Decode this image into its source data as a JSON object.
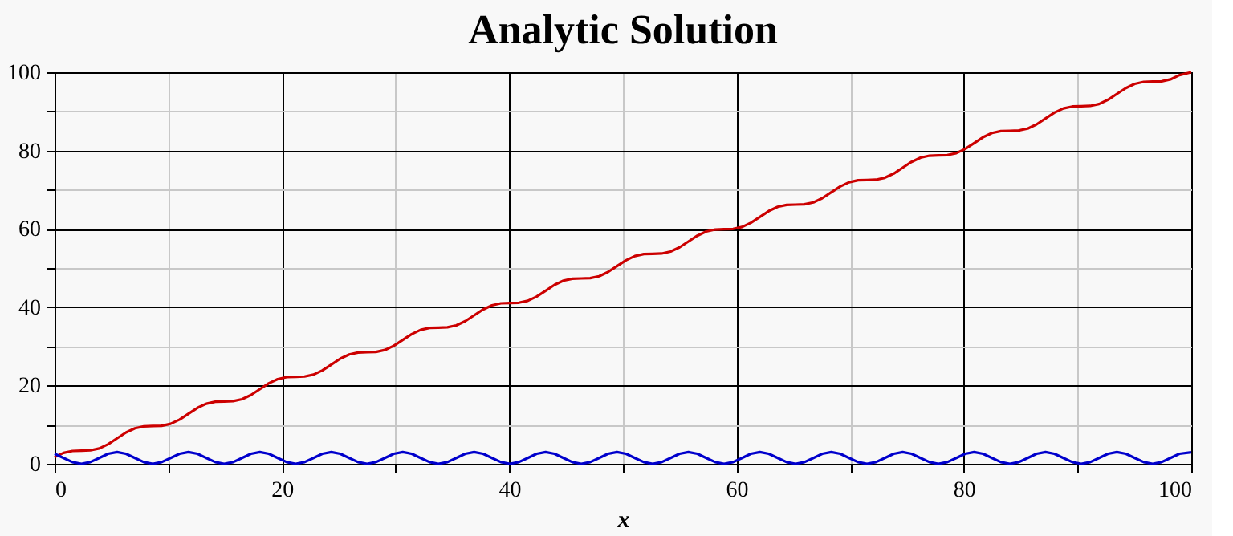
{
  "chart_data": {
    "type": "line",
    "title": "Analytic Solution",
    "xlabel": "x",
    "xlim": [
      0,
      100
    ],
    "ylim": [
      0,
      100
    ],
    "xticks": [
      0,
      {
        "value": 10,
        "label": null
      },
      20,
      {
        "value": 30,
        "label": null
      },
      40,
      {
        "value": 50,
        "label": null
      },
      60,
      {
        "value": 70,
        "label": null
      },
      80,
      {
        "value": 90,
        "label": null
      },
      100
    ],
    "yticks": [
      0,
      {
        "value": 10,
        "label": null
      },
      20,
      {
        "value": 30,
        "label": null
      },
      40,
      {
        "value": 50,
        "label": null
      },
      60,
      {
        "value": 70,
        "label": null
      },
      80,
      {
        "value": 90,
        "label": null
      },
      100
    ],
    "grid": true,
    "legend": false,
    "marker": "none",
    "line_style": "solid",
    "series": [
      {
        "color": "#cc0000",
        "x": [
          0,
          0.79,
          1.57,
          2.36,
          3.14,
          3.93,
          4.71,
          5.5,
          6.28,
          7.07,
          7.85,
          8.64,
          9.42,
          10.21,
          11.0,
          11.78,
          12.57,
          13.35,
          14.14,
          14.92,
          15.71,
          16.49,
          17.28,
          18.06,
          18.85,
          19.63,
          20.42,
          21.21,
          21.99,
          22.78,
          23.56,
          24.35,
          25.13,
          25.92,
          26.7,
          27.49,
          28.27,
          29.06,
          29.85,
          30.63,
          31.42,
          32.2,
          32.99,
          33.77,
          34.56,
          35.34,
          36.13,
          36.91,
          37.7,
          38.48,
          39.27,
          40.06,
          40.84,
          41.63,
          42.41,
          43.2,
          43.98,
          44.77,
          45.55,
          46.34,
          47.12,
          47.91,
          48.69,
          49.48,
          50.27,
          51.05,
          51.84,
          52.62,
          53.41,
          54.19,
          54.98,
          55.76,
          56.55,
          57.33,
          58.12,
          58.9,
          59.69,
          60.48,
          61.26,
          62.05,
          62.83,
          63.62,
          64.4,
          65.19,
          65.97,
          66.76,
          67.54,
          68.33,
          69.12,
          69.9,
          70.69,
          71.47,
          72.26,
          73.04,
          73.83,
          74.61,
          75.4,
          76.18,
          76.97,
          77.75,
          78.54,
          79.33,
          80.11,
          80.9,
          81.68,
          82.47,
          83.25,
          84.04,
          84.82,
          85.61,
          86.39,
          87.18,
          87.96,
          88.75,
          89.54,
          90.32,
          91.11,
          91.89,
          92.68,
          93.46,
          94.25,
          95.03,
          95.82,
          96.6,
          97.39,
          98.17,
          98.96,
          100
        ],
        "values": [
          1.71,
          2.79,
          3.28,
          3.36,
          3.43,
          3.93,
          5.0,
          6.5,
          7.99,
          9.07,
          9.56,
          9.64,
          9.71,
          10.21,
          11.29,
          12.78,
          14.28,
          15.35,
          15.85,
          15.92,
          16.0,
          16.49,
          17.57,
          19.06,
          20.56,
          21.63,
          22.13,
          22.21,
          22.28,
          22.78,
          23.85,
          25.35,
          26.84,
          27.92,
          28.41,
          28.49,
          28.56,
          29.06,
          30.14,
          31.63,
          33.13,
          34.2,
          34.7,
          34.77,
          34.85,
          35.34,
          36.42,
          37.91,
          39.41,
          40.48,
          40.98,
          41.06,
          41.13,
          41.63,
          42.7,
          44.2,
          45.69,
          46.77,
          47.26,
          47.34,
          47.41,
          47.91,
          48.98,
          50.48,
          51.98,
          53.05,
          53.55,
          53.62,
          53.7,
          54.19,
          55.27,
          56.76,
          58.26,
          59.33,
          59.83,
          59.9,
          59.98,
          60.48,
          61.55,
          63.05,
          64.54,
          65.62,
          66.11,
          66.19,
          66.26,
          66.76,
          67.83,
          69.33,
          70.83,
          71.9,
          72.4,
          72.47,
          72.55,
          73.04,
          74.12,
          75.61,
          77.11,
          78.18,
          78.68,
          78.75,
          78.83,
          79.33,
          80.4,
          81.9,
          83.39,
          84.47,
          84.96,
          85.04,
          85.11,
          85.61,
          86.68,
          88.18,
          89.67,
          90.75,
          91.25,
          91.32,
          91.4,
          91.89,
          92.97,
          94.46,
          95.96,
          97.03,
          97.53,
          97.6,
          97.68,
          98.17,
          99.25,
          100
        ]
      },
      {
        "color": "#0000cc",
        "x": [
          0,
          0.79,
          1.57,
          2.36,
          3.14,
          3.93,
          4.71,
          5.5,
          6.28,
          7.07,
          7.85,
          8.64,
          9.42,
          10.21,
          11.0,
          11.78,
          12.57,
          13.35,
          14.14,
          14.92,
          15.71,
          16.49,
          17.28,
          18.06,
          18.85,
          19.63,
          20.42,
          21.21,
          21.99,
          22.78,
          23.56,
          24.35,
          25.13,
          25.92,
          26.7,
          27.49,
          28.27,
          29.06,
          29.85,
          30.63,
          31.42,
          32.2,
          32.99,
          33.77,
          34.56,
          35.34,
          36.13,
          36.91,
          37.7,
          38.48,
          39.27,
          40.06,
          40.84,
          41.63,
          42.41,
          43.2,
          43.98,
          44.77,
          45.55,
          46.34,
          47.12,
          47.91,
          48.69,
          49.48,
          50.27,
          51.05,
          51.84,
          52.62,
          53.41,
          54.19,
          54.98,
          55.76,
          56.55,
          57.33,
          58.12,
          58.9,
          59.69,
          60.48,
          61.26,
          62.05,
          62.83,
          63.62,
          64.4,
          65.19,
          65.97,
          66.76,
          67.54,
          68.33,
          69.12,
          69.9,
          70.69,
          71.47,
          72.26,
          73.04,
          73.83,
          74.61,
          75.4,
          76.18,
          76.97,
          77.75,
          78.54,
          79.33,
          80.11,
          80.9,
          81.68,
          82.47,
          83.25,
          84.04,
          84.82,
          85.61,
          86.39,
          87.18,
          87.96,
          88.75,
          89.54,
          90.32,
          91.11,
          91.89,
          92.68,
          93.46,
          94.25,
          95.03,
          95.82,
          96.6,
          97.39,
          98.17,
          98.96,
          100
        ],
        "values": [
          2.56,
          1.5,
          0.44,
          0,
          0.44,
          1.5,
          2.56,
          3,
          2.56,
          1.5,
          0.44,
          0,
          0.44,
          1.5,
          2.56,
          3,
          2.56,
          1.5,
          0.44,
          0,
          0.44,
          1.5,
          2.56,
          3,
          2.56,
          1.5,
          0.44,
          0,
          0.44,
          1.5,
          2.56,
          3,
          2.56,
          1.5,
          0.44,
          0,
          0.44,
          1.5,
          2.56,
          3,
          2.56,
          1.5,
          0.44,
          0,
          0.44,
          1.5,
          2.56,
          3,
          2.56,
          1.5,
          0.44,
          0,
          0.44,
          1.5,
          2.56,
          3,
          2.56,
          1.5,
          0.44,
          0,
          0.44,
          1.5,
          2.56,
          3,
          2.56,
          1.5,
          0.44,
          0,
          0.44,
          1.5,
          2.56,
          3,
          2.56,
          1.5,
          0.44,
          0,
          0.44,
          1.5,
          2.56,
          3,
          2.56,
          1.5,
          0.44,
          0,
          0.44,
          1.5,
          2.56,
          3,
          2.56,
          1.5,
          0.44,
          0,
          0.44,
          1.5,
          2.56,
          3,
          2.56,
          1.5,
          0.44,
          0,
          0.44,
          1.5,
          2.56,
          3,
          2.56,
          1.5,
          0.44,
          0,
          0.44,
          1.5,
          2.56,
          3,
          2.56,
          1.5,
          0.44,
          0,
          0.44,
          1.5,
          2.56,
          3,
          2.56,
          1.5,
          0.44,
          0,
          0.44,
          1.5,
          2.56,
          2.95
        ]
      }
    ]
  }
}
